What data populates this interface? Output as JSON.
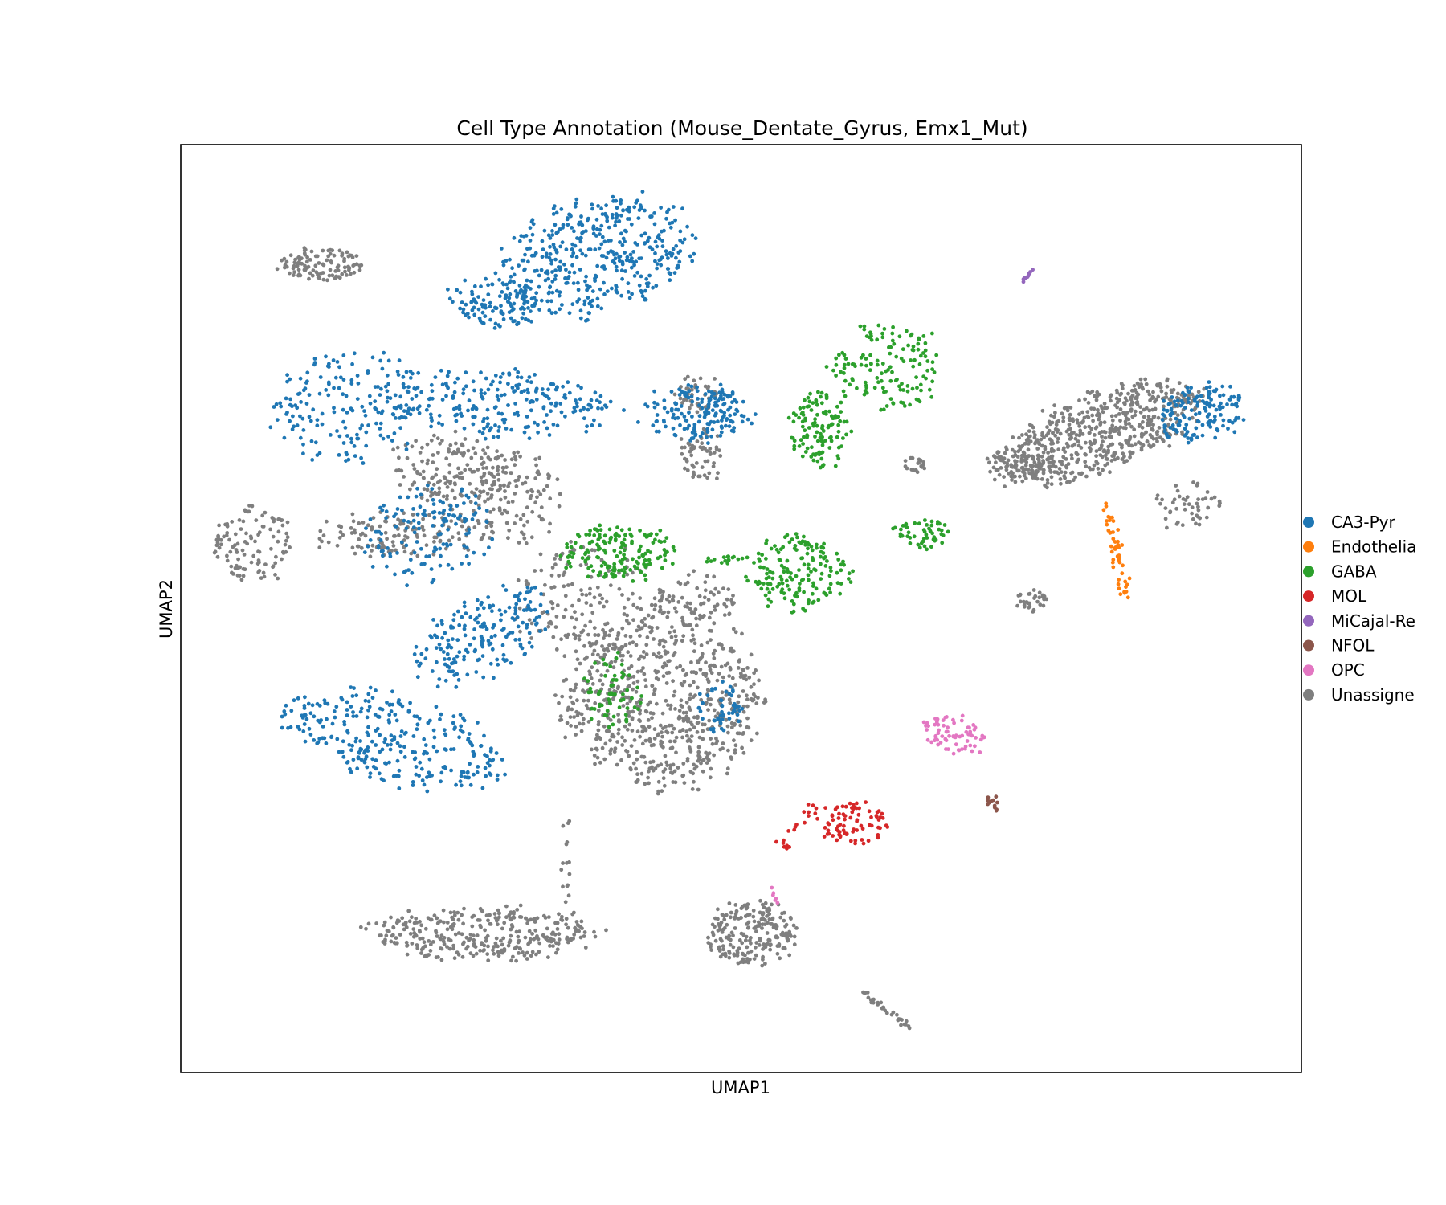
{
  "chart_data": {
    "type": "scatter",
    "title": "Cell Type Annotation (Mouse_Dentate_Gyrus, Emx1_Mut)",
    "xlabel": "UMAP1",
    "ylabel": "UMAP2",
    "xlim": [
      0,
      100
    ],
    "ylim": [
      0,
      100
    ],
    "ticks": "none",
    "grid": false,
    "legend_position": "right (outside plot, cropped)",
    "legend": [
      {
        "name": "CA3-Pyr",
        "color": "#1f77b4"
      },
      {
        "name": "Endothelia",
        "color": "#ff7f0e"
      },
      {
        "name": "GABA",
        "color": "#2ca02c"
      },
      {
        "name": "MOL",
        "color": "#d62728"
      },
      {
        "name": "MiCajal-Re",
        "color": "#9467bd"
      },
      {
        "name": "NFOL",
        "color": "#8c564b"
      },
      {
        "name": "OPC",
        "color": "#e377c2"
      },
      {
        "name": "Unassigne",
        "color": "#7f7f7f"
      }
    ],
    "clusters": [
      {
        "series": "CA3-Pyr",
        "shape": "ellipse",
        "cx": 37,
        "cy": 88,
        "rx": 9,
        "ry": 6,
        "angle": 20,
        "n": 420
      },
      {
        "series": "CA3-Pyr",
        "shape": "ellipse",
        "cx": 28,
        "cy": 83,
        "rx": 4,
        "ry": 2.5,
        "angle": -10,
        "n": 110
      },
      {
        "series": "CA3-Pyr",
        "shape": "ellipse",
        "cx": 15,
        "cy": 72,
        "rx": 7,
        "ry": 6,
        "angle": 0,
        "n": 190
      },
      {
        "series": "CA3-Pyr",
        "shape": "ellipse",
        "cx": 29,
        "cy": 72,
        "rx": 10,
        "ry": 3.5,
        "angle": -5,
        "n": 220
      },
      {
        "series": "CA3-Pyr",
        "shape": "ellipse",
        "cx": 46,
        "cy": 71,
        "rx": 5,
        "ry": 3,
        "angle": 0,
        "n": 110
      },
      {
        "series": "CA3-Pyr",
        "shape": "ellipse",
        "cx": 22,
        "cy": 58,
        "rx": 6,
        "ry": 5,
        "angle": 30,
        "n": 140
      },
      {
        "series": "CA3-Pyr",
        "shape": "ellipse",
        "cx": 27,
        "cy": 47,
        "rx": 7,
        "ry": 4,
        "angle": 35,
        "n": 190
      },
      {
        "series": "CA3-Pyr",
        "shape": "ellipse",
        "cx": 19,
        "cy": 36,
        "rx": 10,
        "ry": 4.5,
        "angle": -20,
        "n": 300
      },
      {
        "series": "CA3-Pyr",
        "shape": "ellipse",
        "cx": 48,
        "cy": 39,
        "rx": 2,
        "ry": 3,
        "angle": 0,
        "n": 50
      },
      {
        "series": "CA3-Pyr",
        "shape": "ellipse",
        "cx": 46,
        "cy": 71,
        "rx": 3,
        "ry": 3,
        "angle": 0,
        "n": 60
      },
      {
        "series": "CA3-Pyr",
        "shape": "ellipse",
        "cx": 91,
        "cy": 71,
        "rx": 4,
        "ry": 3,
        "angle": 15,
        "n": 150
      },
      {
        "series": "Endothelia",
        "shape": "line",
        "x1": 82.5,
        "y1": 61.5,
        "x2": 84.5,
        "y2": 50.5,
        "spread": 0.6,
        "n": 50
      },
      {
        "series": "GABA",
        "shape": "ellipse",
        "cx": 63,
        "cy": 76,
        "rx": 5,
        "ry": 5,
        "angle": 0,
        "n": 140
      },
      {
        "series": "GABA",
        "shape": "ellipse",
        "cx": 57,
        "cy": 69,
        "rx": 3,
        "ry": 4,
        "angle": 0,
        "n": 120
      },
      {
        "series": "GABA",
        "shape": "ellipse",
        "cx": 55,
        "cy": 54,
        "rx": 4.5,
        "ry": 4,
        "angle": 0,
        "n": 160
      },
      {
        "series": "GABA",
        "shape": "ellipse",
        "cx": 39,
        "cy": 56,
        "rx": 5,
        "ry": 3,
        "angle": 0,
        "n": 170
      },
      {
        "series": "GABA",
        "shape": "ellipse",
        "cx": 66,
        "cy": 58,
        "rx": 3,
        "ry": 1.5,
        "angle": 0,
        "n": 50
      },
      {
        "series": "GABA",
        "shape": "ellipse",
        "cx": 38.5,
        "cy": 41,
        "rx": 2.5,
        "ry": 4,
        "angle": 0,
        "n": 60
      },
      {
        "series": "GABA",
        "shape": "line",
        "x1": 46.5,
        "y1": 55.5,
        "x2": 52,
        "y2": 55,
        "spread": 0.5,
        "n": 18
      },
      {
        "series": "MOL",
        "shape": "ellipse",
        "cx": 60,
        "cy": 27,
        "rx": 3,
        "ry": 2.5,
        "angle": 0,
        "n": 80
      },
      {
        "series": "MOL",
        "shape": "line",
        "x1": 53.5,
        "y1": 24,
        "x2": 57,
        "y2": 29,
        "spread": 0.7,
        "n": 20
      },
      {
        "series": "MiCajal-Re",
        "shape": "line",
        "x1": 75,
        "y1": 85.2,
        "x2": 76.3,
        "y2": 86.8,
        "spread": 0.15,
        "n": 12
      },
      {
        "series": "NFOL",
        "shape": "ellipse",
        "cx": 72.5,
        "cy": 29,
        "rx": 0.6,
        "ry": 1.2,
        "angle": 0,
        "n": 12
      },
      {
        "series": "OPC",
        "shape": "ellipse",
        "cx": 69,
        "cy": 36.5,
        "rx": 3,
        "ry": 2,
        "angle": -20,
        "n": 70
      },
      {
        "series": "OPC",
        "shape": "line",
        "x1": 52.5,
        "y1": 20.5,
        "x2": 53.5,
        "y2": 17.5,
        "spread": 0.3,
        "n": 6
      },
      {
        "series": "Unassigned",
        "shape": "ellipse",
        "cx": 12.5,
        "cy": 87,
        "rx": 4,
        "ry": 1.8,
        "angle": 0,
        "n": 110
      },
      {
        "series": "Unassigned",
        "shape": "ellipse",
        "cx": 6.5,
        "cy": 57,
        "rx": 3.5,
        "ry": 4,
        "angle": 0,
        "n": 110
      },
      {
        "series": "Unassigned",
        "shape": "ellipse",
        "cx": 20,
        "cy": 58,
        "rx": 8,
        "ry": 2.5,
        "angle": 0,
        "n": 140
      },
      {
        "series": "Unassigned",
        "shape": "ellipse",
        "cx": 24,
        "cy": 65,
        "rx": 5,
        "ry": 4,
        "angle": 0,
        "n": 150
      },
      {
        "series": "Unassigned",
        "shape": "ellipse",
        "cx": 30,
        "cy": 62,
        "rx": 4,
        "ry": 5,
        "angle": 0,
        "n": 120
      },
      {
        "series": "Unassigned",
        "shape": "ellipse",
        "cx": 36,
        "cy": 51,
        "rx": 6,
        "ry": 6,
        "angle": 0,
        "n": 160
      },
      {
        "series": "Unassigned",
        "shape": "ellipse",
        "cx": 43,
        "cy": 40,
        "rx": 9,
        "ry": 9,
        "angle": 0,
        "n": 700
      },
      {
        "series": "Unassigned",
        "shape": "ellipse",
        "cx": 46,
        "cy": 51,
        "rx": 4,
        "ry": 3,
        "angle": 0,
        "n": 80
      },
      {
        "series": "Unassigned",
        "shape": "ellipse",
        "cx": 46,
        "cy": 73.5,
        "rx": 2,
        "ry": 2.5,
        "angle": 0,
        "n": 40
      },
      {
        "series": "Unassigned",
        "shape": "ellipse",
        "cx": 46.5,
        "cy": 66.5,
        "rx": 2,
        "ry": 2.8,
        "angle": 0,
        "n": 60
      },
      {
        "series": "Unassigned",
        "shape": "ellipse",
        "cx": 82,
        "cy": 69,
        "rx": 10,
        "ry": 4,
        "angle": 25,
        "n": 600
      },
      {
        "series": "Unassigned",
        "shape": "ellipse",
        "cx": 74.5,
        "cy": 65.5,
        "rx": 3,
        "ry": 1.5,
        "angle": 0,
        "n": 70
      },
      {
        "series": "Unassigned",
        "shape": "ellipse",
        "cx": 90,
        "cy": 61,
        "rx": 3,
        "ry": 3,
        "angle": 0,
        "n": 50
      },
      {
        "series": "Unassigned",
        "shape": "ellipse",
        "cx": 76,
        "cy": 51,
        "rx": 1.5,
        "ry": 1.2,
        "angle": 0,
        "n": 30
      },
      {
        "series": "Unassigned",
        "shape": "ellipse",
        "cx": 65.5,
        "cy": 65.5,
        "rx": 1,
        "ry": 0.8,
        "angle": 0,
        "n": 20
      },
      {
        "series": "Unassigned",
        "shape": "ellipse",
        "cx": 27,
        "cy": 15,
        "rx": 10,
        "ry": 2.8,
        "angle": 0,
        "n": 330
      },
      {
        "series": "Unassigned",
        "shape": "ellipse",
        "cx": 51,
        "cy": 15,
        "rx": 4,
        "ry": 3.5,
        "angle": 0,
        "n": 220
      },
      {
        "series": "Unassigned",
        "shape": "line",
        "x1": 60.5,
        "y1": 9,
        "x2": 65,
        "y2": 4.8,
        "spread": 0.4,
        "n": 30
      },
      {
        "series": "Unassigned",
        "shape": "line",
        "x1": 34.5,
        "y1": 27,
        "x2": 34.5,
        "y2": 18,
        "spread": 0.6,
        "n": 15
      }
    ]
  }
}
